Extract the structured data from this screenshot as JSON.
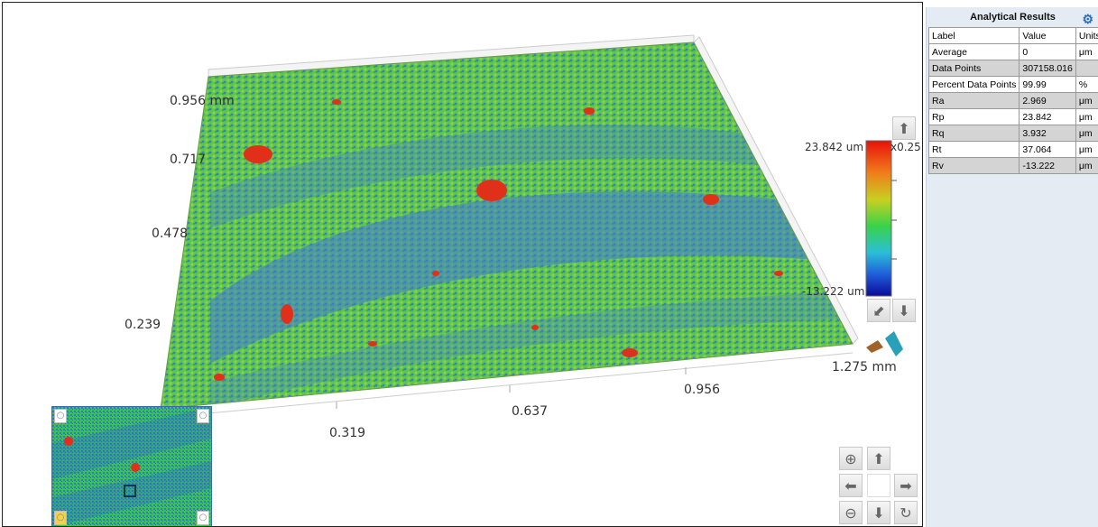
{
  "view": {
    "y_axis_labels": [
      "0.956 mm",
      "0.717",
      "0.478",
      "0.239"
    ],
    "x_axis_labels": [
      "0.319",
      "0.637",
      "0.956",
      "1.275 mm"
    ],
    "colorbar": {
      "max_label": "23.842 um",
      "min_label": "-13.222 um",
      "scale_label": "x0.25",
      "colors": [
        "#e8110a",
        "#f07a1a",
        "#c8d020",
        "#39d24a",
        "#2bbfd8",
        "#1f5ed8",
        "#0a0a9a"
      ]
    },
    "surface_colors": {
      "peak": "#e0301a",
      "high": "#8fd04a",
      "mid": "#3fbf4f",
      "low": "#3a7ad8"
    }
  },
  "navigation": {
    "up_icon": "arrow-up-icon",
    "down_icon": "arrow-down-icon",
    "left_icon": "arrow-left-icon",
    "right_icon": "arrow-right-icon",
    "zoom_in_icon": "zoom-in-icon",
    "zoom_out_icon": "zoom-out-icon",
    "reset_icon": "rotate-icon"
  },
  "panel": {
    "title": "Analytical Results",
    "settings_icon": "gears-icon",
    "columns": [
      "Label",
      "Value",
      "Units"
    ],
    "rows": [
      [
        "Average",
        "0",
        "μm"
      ],
      [
        "Data Points",
        "307158.016",
        ""
      ],
      [
        "Percent Data Points",
        "99.99",
        "%"
      ],
      [
        "Ra",
        "2.969",
        "μm"
      ],
      [
        "Rp",
        "23.842",
        "μm"
      ],
      [
        "Rq",
        "3.932",
        "μm"
      ],
      [
        "Rt",
        "37.064",
        "μm"
      ],
      [
        "Rv",
        "-13.222",
        "μm"
      ]
    ]
  }
}
